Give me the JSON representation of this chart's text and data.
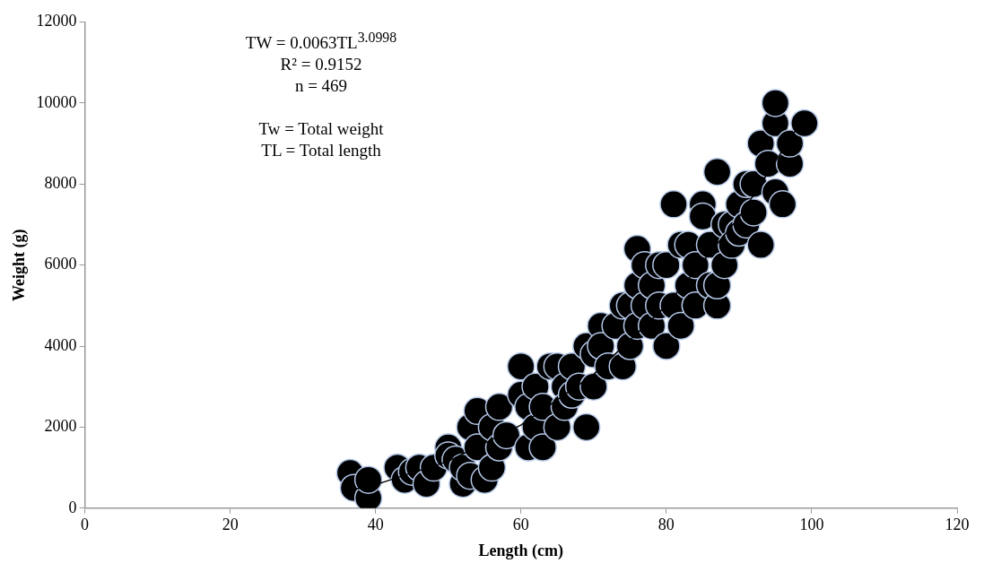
{
  "chart_data": {
    "type": "scatter",
    "xlabel": "Length (cm)",
    "ylabel": "Weight (g)",
    "xlim": [
      0,
      120
    ],
    "xticks": [
      0,
      20,
      40,
      60,
      80,
      100,
      120
    ],
    "ylim": [
      0,
      12000
    ],
    "yticks": [
      0,
      2000,
      4000,
      6000,
      8000,
      10000,
      12000
    ],
    "grid": false,
    "legend": false,
    "marker": "circle",
    "annotations": [
      "TW = 0.0063TL$^{3.0998}$",
      "R² = 0.9152",
      "n = 469",
      "Tw = Total weight",
      "TL = Total length"
    ],
    "series": [
      {
        "type": "line",
        "color": "#000000",
        "marker": "none",
        "x": [
          37,
          40,
          50,
          60,
          70,
          80,
          90,
          99
        ],
        "values": [
          460,
          580,
          1160,
          2050,
          3300,
          5000,
          7180,
          9660
        ]
      },
      {
        "color": "#000000",
        "x": [
          36.5,
          37,
          39,
          39,
          43,
          44,
          45,
          46,
          47,
          48,
          50,
          50,
          51,
          52,
          52,
          53,
          53,
          54,
          54,
          55,
          56,
          56,
          57,
          57,
          58,
          60,
          60,
          61,
          61,
          62,
          62,
          63,
          63,
          64,
          65,
          65,
          66,
          66,
          67,
          67,
          68,
          69,
          69,
          70,
          70,
          71,
          71,
          72,
          73,
          74,
          74,
          75,
          75,
          76,
          76,
          76,
          77,
          77,
          78,
          78,
          79,
          79,
          80,
          80,
          81,
          81,
          82,
          82,
          83,
          83,
          84,
          84,
          85,
          85,
          86,
          86,
          87,
          87,
          87,
          88,
          88,
          89,
          89,
          90,
          90,
          91,
          91,
          92,
          92,
          93,
          93,
          94,
          95,
          95,
          95,
          96,
          97,
          97,
          99
        ],
        "values": [
          870,
          500,
          250,
          700,
          1000,
          700,
          900,
          1000,
          600,
          1000,
          1500,
          1300,
          1200,
          600,
          1000,
          800,
          2000,
          2400,
          1500,
          700,
          1000,
          2000,
          2500,
          1500,
          1800,
          3500,
          2800,
          1500,
          2500,
          3000,
          2000,
          2500,
          1500,
          3500,
          3500,
          2000,
          3000,
          2500,
          3500,
          2800,
          3000,
          2000,
          4000,
          3800,
          3000,
          4500,
          4000,
          3500,
          4500,
          5000,
          3500,
          4000,
          5000,
          6400,
          5500,
          4500,
          6000,
          5000,
          5500,
          4500,
          6000,
          5000,
          6000,
          4000,
          5000,
          7500,
          6500,
          4500,
          5500,
          6500,
          6000,
          5000,
          7500,
          7200,
          6500,
          5500,
          8300,
          5000,
          5500,
          6000,
          7000,
          7000,
          6500,
          7500,
          6800,
          8000,
          7000,
          8000,
          7300,
          9000,
          6500,
          8500,
          9500,
          10000,
          7800,
          7500,
          8500,
          9000,
          9500
        ]
      }
    ]
  }
}
